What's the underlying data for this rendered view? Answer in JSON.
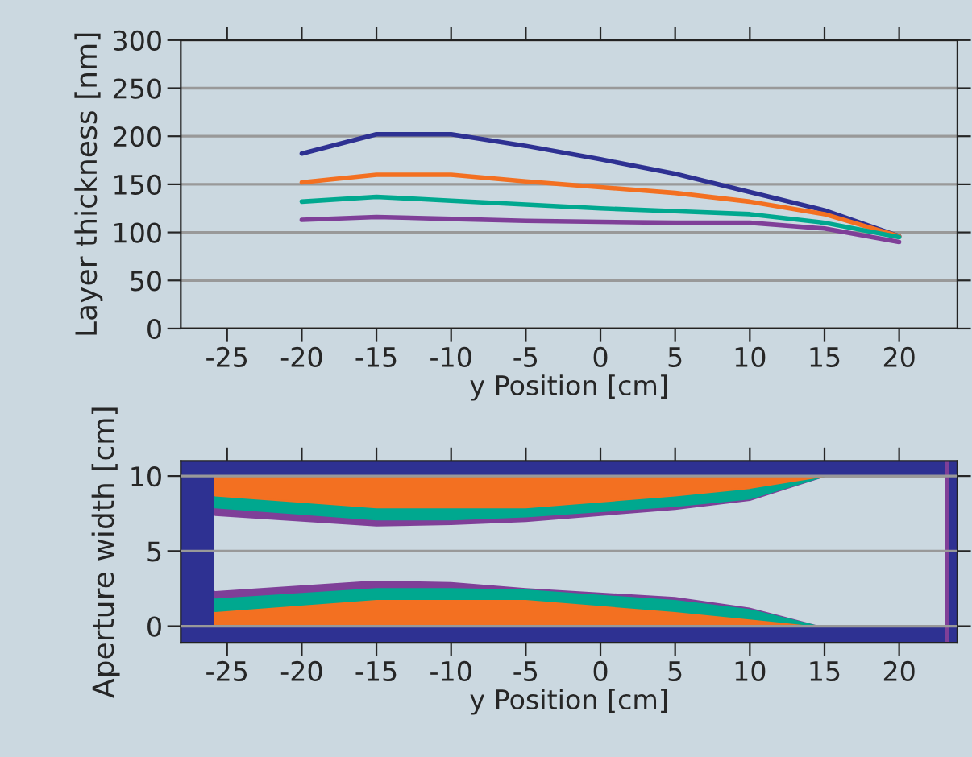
{
  "chart_data": [
    {
      "type": "line",
      "ylabel": "Layer thickness [nm]",
      "xlabel": "y Position [cm]",
      "x": [
        -20,
        -15,
        -10,
        -5,
        0,
        5,
        10,
        15,
        20
      ],
      "xlim": [
        -28.1,
        23.9
      ],
      "xticks": [
        -25,
        -20,
        -15,
        -10,
        -5,
        0,
        5,
        10,
        15,
        20
      ],
      "ylim": [
        0,
        300
      ],
      "yticks": [
        0,
        50,
        100,
        150,
        200,
        250,
        300
      ],
      "grid": "y",
      "series": [
        {
          "color": "#2e3192",
          "values": [
            182,
            202,
            202,
            190,
            176,
            161,
            142,
            123,
            96
          ]
        },
        {
          "color": "#f37021",
          "values": [
            152,
            160,
            160,
            153,
            147,
            141,
            132,
            119,
            96
          ]
        },
        {
          "color": "#00a88f",
          "values": [
            132,
            137,
            133,
            129,
            125,
            122,
            119,
            110,
            95
          ]
        },
        {
          "color": "#7f3f98",
          "values": [
            113,
            116,
            114,
            112,
            111,
            110,
            110,
            104,
            90
          ]
        }
      ]
    },
    {
      "type": "area",
      "ylabel": "Aperture width [cm]",
      "xlabel": "y Position [cm]",
      "xlim": [
        -28.1,
        23.9
      ],
      "xticks": [
        -25,
        -20,
        -15,
        -10,
        -5,
        0,
        5,
        10,
        15,
        20
      ],
      "ylim": [
        -1.1,
        11.0
      ],
      "yticks": [
        0,
        5,
        10
      ],
      "grid": "y",
      "bands": [
        {
          "axis": "x",
          "from": -28.1,
          "to": -25.8,
          "color": "#2e3192"
        },
        {
          "axis": "x",
          "from": 23.2,
          "to": 23.9,
          "color": "#2e3192"
        },
        {
          "axis": "y",
          "from": 10,
          "to": 11.0,
          "color": "#2e3192"
        },
        {
          "axis": "y",
          "from": -1.1,
          "to": 0,
          "color": "#2e3192"
        }
      ],
      "ref_lines": [
        {
          "axis": "x",
          "value": 23.2,
          "color": "#7f3f98"
        }
      ],
      "stacked": true,
      "x": [
        -25.8,
        -15,
        -10,
        -5,
        5,
        10,
        15,
        23.2
      ],
      "series": [
        {
          "color": "#f37021",
          "values": [
            1.0,
            1.8,
            1.8,
            1.8,
            1.0,
            0.5,
            0,
            0
          ]
        },
        {
          "color": "#00a88f",
          "values": [
            0.9,
            0.8,
            0.8,
            0.7,
            0.8,
            0.7,
            0,
            0
          ]
        },
        {
          "color": "#7f3f98",
          "values": [
            0.5,
            0.5,
            0.4,
            0.1,
            0.2,
            0.1,
            0,
            0
          ]
        },
        {
          "color": "#cbd8e0",
          "values": [
            5.0,
            3.6,
            3.8,
            4.4,
            5.8,
            7.1,
            10,
            10
          ]
        },
        {
          "color": "#7f3f98",
          "values": [
            0.5,
            0.4,
            0.3,
            0.3,
            0.2,
            0.1,
            0,
            0
          ]
        },
        {
          "color": "#00a88f",
          "values": [
            0.8,
            0.8,
            0.8,
            0.6,
            0.7,
            0.7,
            0,
            0
          ]
        },
        {
          "color": "#f37021",
          "values": [
            1.3,
            2.1,
            2.1,
            2.1,
            1.3,
            0.8,
            0,
            0
          ]
        }
      ]
    }
  ]
}
